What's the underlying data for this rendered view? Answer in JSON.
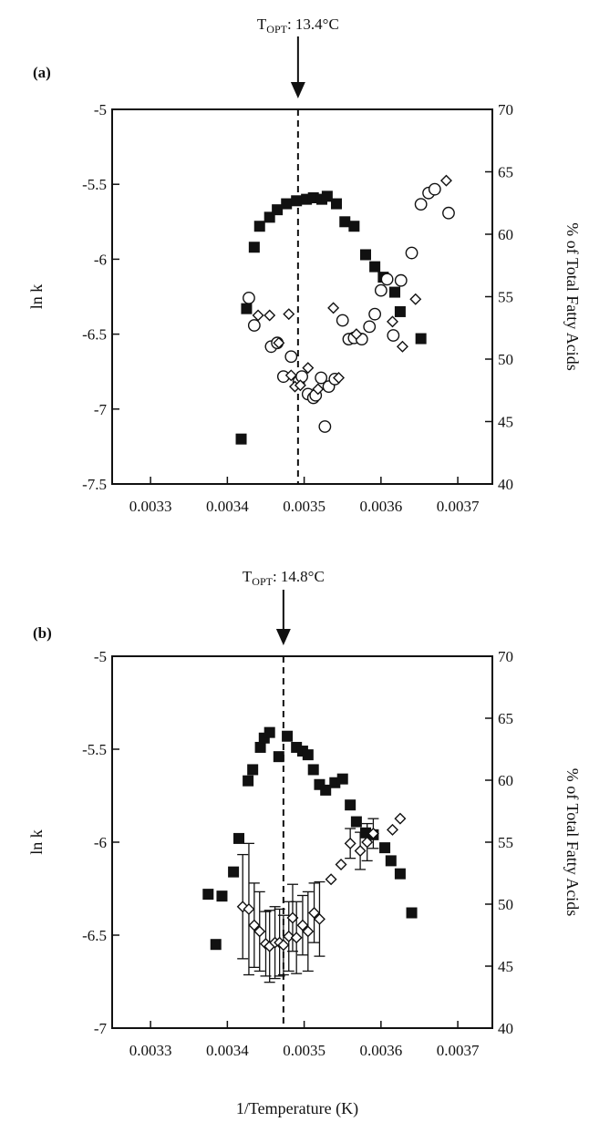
{
  "figure": {
    "shared_xlabel": "1/Temperature (K)",
    "x_ticks": [
      "0.0033",
      "0.0034",
      "0.0035",
      "0.0036",
      "0.0037"
    ]
  },
  "chart_data": [
    {
      "type": "scatter",
      "panel_label": "(a)",
      "topt_label": "T",
      "topt_sub": "OPT",
      "topt_value": ": 13.4°C",
      "topt_x": 0.003492,
      "xlabel": "",
      "ylabel": "ln k",
      "y2label": "% of Total Fatty Acids",
      "xlim": [
        0.00325,
        0.003745
      ],
      "ylim": [
        -7.5,
        -5
      ],
      "y2lim": [
        40,
        70
      ],
      "y_ticks": [
        "-7.5",
        "-7",
        "-6.5",
        "-6",
        "-5.5",
        "-5"
      ],
      "y2_ticks": [
        "40",
        "45",
        "50",
        "55",
        "60",
        "65",
        "70"
      ],
      "series": [
        {
          "axis": "left",
          "marker": "filled-square",
          "color": "#111111",
          "points": [
            [
              0.003418,
              -7.2
            ],
            [
              0.003425,
              -6.33
            ],
            [
              0.003435,
              -5.92
            ],
            [
              0.003442,
              -5.78
            ],
            [
              0.003455,
              -5.72
            ],
            [
              0.003465,
              -5.67
            ],
            [
              0.003477,
              -5.63
            ],
            [
              0.00349,
              -5.61
            ],
            [
              0.003503,
              -5.6
            ],
            [
              0.003512,
              -5.59
            ],
            [
              0.003523,
              -5.6
            ],
            [
              0.00353,
              -5.58
            ],
            [
              0.003542,
              -5.63
            ],
            [
              0.003553,
              -5.75
            ],
            [
              0.003565,
              -5.78
            ],
            [
              0.00358,
              -5.97
            ],
            [
              0.003592,
              -6.05
            ],
            [
              0.003603,
              -6.12
            ],
            [
              0.003618,
              -6.22
            ],
            [
              0.003625,
              -6.35
            ],
            [
              0.003652,
              -6.53
            ]
          ]
        },
        {
          "axis": "right",
          "marker": "open-circle",
          "color": "#111111",
          "points": [
            [
              0.003428,
              54.9
            ],
            [
              0.003435,
              52.7
            ],
            [
              0.003457,
              51.0
            ],
            [
              0.003465,
              51.3
            ],
            [
              0.003473,
              48.6
            ],
            [
              0.003483,
              50.2
            ],
            [
              0.003493,
              48.2
            ],
            [
              0.003497,
              48.6
            ],
            [
              0.003505,
              47.2
            ],
            [
              0.003512,
              46.9
            ],
            [
              0.003515,
              47.1
            ],
            [
              0.003522,
              48.5
            ],
            [
              0.003527,
              44.6
            ],
            [
              0.003532,
              47.8
            ],
            [
              0.00354,
              48.4
            ],
            [
              0.00355,
              53.1
            ],
            [
              0.003558,
              51.6
            ],
            [
              0.003565,
              51.7
            ],
            [
              0.003575,
              51.6
            ],
            [
              0.003585,
              52.6
            ],
            [
              0.003592,
              53.6
            ],
            [
              0.0036,
              55.5
            ],
            [
              0.003608,
              56.4
            ],
            [
              0.003616,
              51.9
            ],
            [
              0.003626,
              56.3
            ],
            [
              0.00364,
              58.5
            ],
            [
              0.003652,
              62.4
            ],
            [
              0.003662,
              63.3
            ],
            [
              0.00367,
              63.6
            ],
            [
              0.003688,
              61.7
            ]
          ]
        },
        {
          "axis": "right",
          "marker": "open-diamond",
          "color": "#111111",
          "points": [
            [
              0.00344,
              53.5
            ],
            [
              0.003455,
              53.5
            ],
            [
              0.003467,
              51.3
            ],
            [
              0.00348,
              53.6
            ],
            [
              0.003483,
              48.7
            ],
            [
              0.003488,
              47.8
            ],
            [
              0.003495,
              47.9
            ],
            [
              0.003505,
              49.3
            ],
            [
              0.003518,
              47.6
            ],
            [
              0.003538,
              54.1
            ],
            [
              0.003545,
              48.5
            ],
            [
              0.003568,
              52.0
            ],
            [
              0.003615,
              53.0
            ],
            [
              0.003628,
              51.0
            ],
            [
              0.003645,
              54.8
            ],
            [
              0.003685,
              64.3
            ]
          ]
        }
      ]
    },
    {
      "type": "scatter",
      "panel_label": "(b)",
      "topt_label": "T",
      "topt_sub": "OPT",
      "topt_value": ": 14.8°C",
      "topt_x": 0.003473,
      "xlabel": "",
      "ylabel": "ln k",
      "y2label": "% of Total Fatty Acids",
      "xlim": [
        0.00325,
        0.003745
      ],
      "ylim": [
        -7,
        -5
      ],
      "y2lim": [
        40,
        70
      ],
      "y_ticks": [
        "-7",
        "-6.5",
        "-6",
        "-5.5",
        "-5"
      ],
      "y2_ticks": [
        "40",
        "45",
        "50",
        "55",
        "60",
        "65",
        "70"
      ],
      "series": [
        {
          "axis": "left",
          "marker": "filled-square",
          "color": "#111111",
          "points": [
            [
              0.003375,
              -6.28
            ],
            [
              0.003385,
              -6.55
            ],
            [
              0.003393,
              -6.29
            ],
            [
              0.003408,
              -6.16
            ],
            [
              0.003415,
              -5.98
            ],
            [
              0.003427,
              -5.67
            ],
            [
              0.003433,
              -5.61
            ],
            [
              0.003443,
              -5.49
            ],
            [
              0.003448,
              -5.44
            ],
            [
              0.003455,
              -5.41
            ],
            [
              0.003467,
              -5.54
            ],
            [
              0.003478,
              -5.43
            ],
            [
              0.00349,
              -5.49
            ],
            [
              0.003498,
              -5.51
            ],
            [
              0.003505,
              -5.53
            ],
            [
              0.003512,
              -5.61
            ],
            [
              0.00352,
              -5.69
            ],
            [
              0.003528,
              -5.72
            ],
            [
              0.00354,
              -5.68
            ],
            [
              0.00355,
              -5.66
            ],
            [
              0.00356,
              -5.8
            ],
            [
              0.003568,
              -5.89
            ],
            [
              0.00358,
              -5.95
            ],
            [
              0.00359,
              -5.96
            ],
            [
              0.003605,
              -6.03
            ],
            [
              0.003613,
              -6.1
            ],
            [
              0.003625,
              -6.17
            ],
            [
              0.00364,
              -6.38
            ]
          ]
        },
        {
          "axis": "right",
          "marker": "open-diamond",
          "color": "#111111",
          "error_bars": true,
          "points": [
            [
              0.00342,
              49.8,
              4.2
            ],
            [
              0.003428,
              49.6,
              5.3
            ],
            [
              0.003435,
              48.3,
              3.4
            ],
            [
              0.003442,
              47.8,
              3.2
            ],
            [
              0.00345,
              46.8,
              2.6
            ],
            [
              0.003455,
              46.6,
              2.9
            ],
            [
              0.003462,
              46.9,
              2.9
            ],
            [
              0.003468,
              46.9,
              2.7
            ],
            [
              0.003473,
              46.7,
              2.4
            ],
            [
              0.00348,
              47.4,
              2.8
            ],
            [
              0.003485,
              48.9,
              2.7
            ],
            [
              0.00349,
              47.3,
              2.9
            ],
            [
              0.003498,
              48.3,
              2.4
            ],
            [
              0.003505,
              47.8,
              3.2
            ],
            [
              0.003513,
              49.3,
              2.4
            ],
            [
              0.00352,
              48.8,
              3.0
            ],
            [
              0.003535,
              52.0,
              0.0
            ],
            [
              0.003548,
              53.2,
              0.0
            ],
            [
              0.00356,
              54.9,
              1.2
            ],
            [
              0.003573,
              54.3,
              1.5
            ],
            [
              0.003582,
              55.0,
              1.5
            ],
            [
              0.00359,
              55.7,
              1.2
            ],
            [
              0.003615,
              56.0,
              0.0
            ],
            [
              0.003625,
              56.9,
              0.0
            ]
          ]
        }
      ]
    }
  ]
}
